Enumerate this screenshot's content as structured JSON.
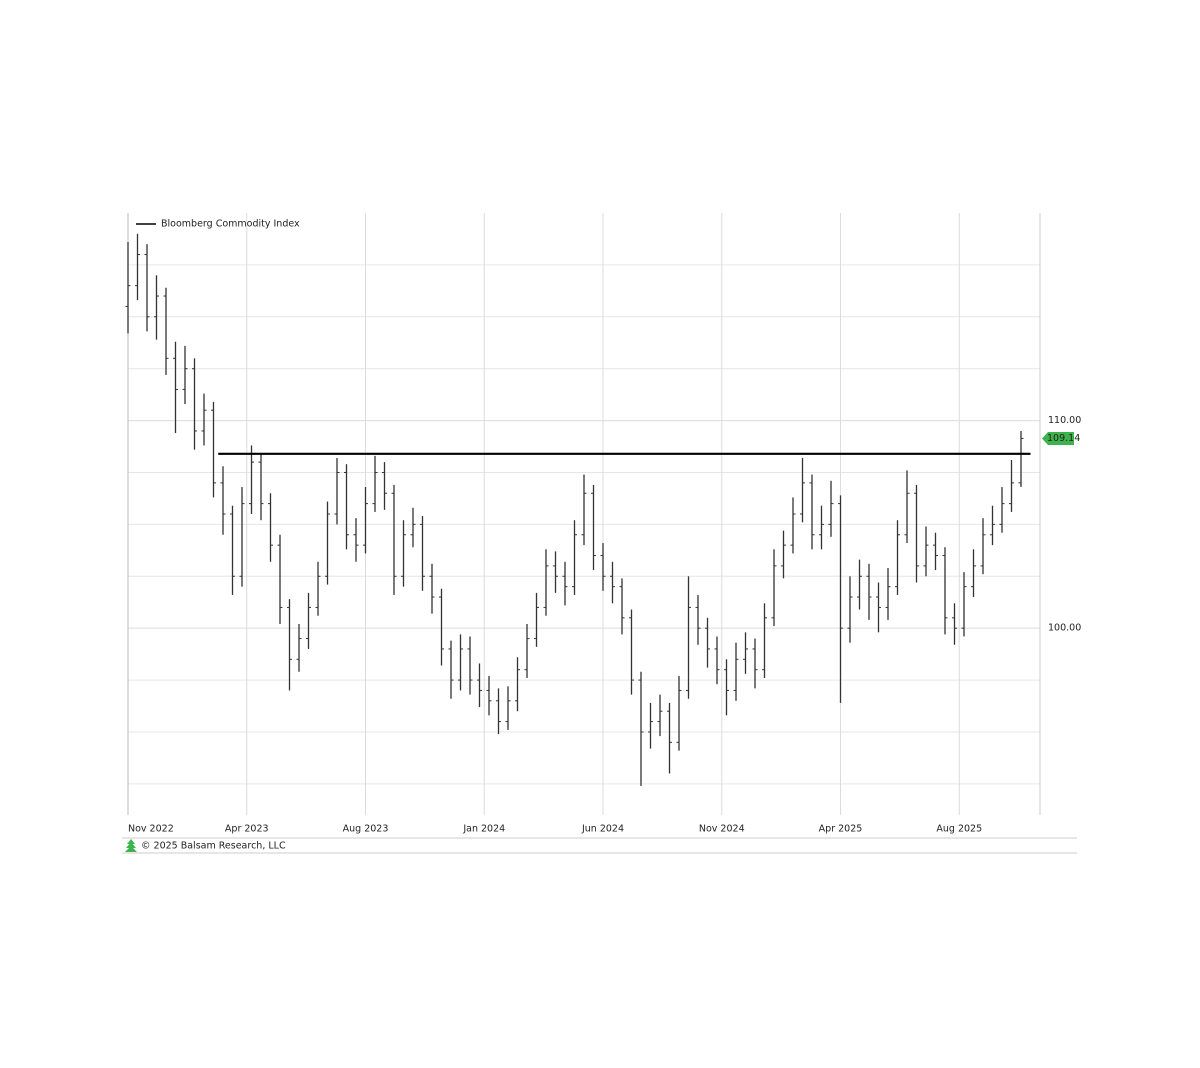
{
  "chart_data": {
    "type": "ohlc",
    "legend": "upper left",
    "footer": "© 2025 Balsam Research, LLC",
    "xlim": [
      0,
      768
    ],
    "xticks": [
      {
        "value": 0,
        "label": "Nov 2022"
      },
      {
        "value": 100,
        "label": "Apr 2023"
      },
      {
        "value": 200,
        "label": "Aug 2023"
      },
      {
        "value": 300,
        "label": "Jan 2024"
      },
      {
        "value": 400,
        "label": "Jun 2024"
      },
      {
        "value": 500,
        "label": "Nov 2024"
      },
      {
        "value": 600,
        "label": "Apr 2025"
      },
      {
        "value": 700,
        "label": "Aug 2025"
      }
    ],
    "ylim": [
      91,
      120
    ],
    "yticks": [
      {
        "value": 110,
        "label": "110.00"
      },
      {
        "value": 100,
        "label": "100.00"
      }
    ],
    "ygrid": [
      92.5,
      95,
      97.5,
      102.5,
      105,
      107.5,
      112.5,
      115,
      117.5
    ],
    "grid": true,
    "level_line": {
      "y": 108.4,
      "x": [
        76,
        760
      ],
      "color": "#000000"
    },
    "x": [
      0,
      8,
      16,
      24,
      32,
      40,
      48,
      56,
      64,
      72,
      80,
      88,
      96,
      104,
      112,
      120,
      128,
      136,
      144,
      152,
      160,
      168,
      176,
      184,
      192,
      200,
      208,
      216,
      224,
      232,
      240,
      248,
      256,
      264,
      272,
      280,
      288,
      296,
      304,
      312,
      320,
      328,
      336,
      344,
      352,
      360,
      368,
      376,
      384,
      392,
      400,
      408,
      416,
      424,
      432,
      440,
      448,
      456,
      464,
      472,
      480,
      488,
      496,
      504,
      512,
      520,
      528,
      536,
      544,
      552,
      560,
      568,
      576,
      584,
      592,
      600,
      608,
      616,
      624,
      632,
      640,
      648,
      656,
      664,
      672,
      680,
      688,
      696,
      704,
      712,
      720,
      728,
      736,
      744,
      752
    ],
    "series": [
      {
        "name": "Bloomberg Commodity Index",
        "color": "#333333",
        "tag_color": "#3cb44b",
        "open": [
          115.5,
          116.5,
          118,
          115,
          116,
          113,
          111.5,
          112.5,
          109.5,
          110.5,
          107,
          105.5,
          102.5,
          106,
          108,
          106,
          104,
          101,
          98.5,
          99.5,
          101,
          102.5,
          105.5,
          107.5,
          104.5,
          104,
          106,
          107.5,
          106.5,
          102.5,
          104.5,
          105,
          102.5,
          101.5,
          99,
          97.5,
          99,
          97.5,
          97,
          96.5,
          95.5,
          96.5,
          98,
          99.5,
          101,
          103,
          102.5,
          102,
          104.5,
          106.5,
          103.5,
          102.5,
          102,
          100.5,
          97.5,
          95,
          95.5,
          96,
          94.5,
          97,
          101,
          100,
          99,
          98,
          97,
          98.5,
          99,
          98,
          100.5,
          103,
          104,
          105.5,
          107,
          104.5,
          105,
          106,
          100,
          101.5,
          102.5,
          101.5,
          101,
          102,
          104.5,
          106.5,
          103,
          104,
          103.5,
          100.5,
          100,
          102,
          103,
          104.5,
          105,
          106,
          107
        ],
        "high": [
          118.6,
          119,
          118.5,
          117,
          116.4,
          113.8,
          113.6,
          113,
          111.3,
          110.9,
          107.8,
          105.9,
          106.8,
          108.8,
          108.4,
          106.5,
          104.5,
          101.4,
          100.2,
          101.7,
          103.2,
          106.1,
          108.2,
          107.9,
          105.3,
          106.8,
          108.3,
          108,
          106.9,
          105.2,
          105.8,
          105.4,
          103.1,
          101.9,
          99.4,
          99.7,
          99.6,
          98.3,
          97.7,
          97.1,
          97.2,
          98.6,
          100.2,
          101.7,
          103.8,
          103.7,
          103.2,
          105.2,
          107.4,
          106.9,
          104.1,
          103.2,
          102.4,
          100.9,
          97.9,
          96.4,
          96.8,
          96.4,
          97.7,
          102.5,
          101.6,
          100.5,
          99.6,
          98.5,
          99.3,
          99.8,
          99.5,
          101.2,
          103.8,
          104.7,
          106.3,
          108.2,
          107.4,
          105.9,
          107.1,
          106.4,
          102.5,
          103.3,
          103.1,
          102.2,
          102.9,
          105.2,
          107.6,
          106.9,
          104.9,
          104.6,
          103.9,
          101.2,
          102.7,
          103.8,
          105.3,
          105.9,
          106.8,
          108.1,
          109.5
        ],
        "low": [
          114.2,
          115.8,
          114.3,
          113.9,
          112.2,
          109.4,
          110.8,
          108.6,
          108.8,
          106.3,
          104.5,
          101.6,
          102,
          105.5,
          105.2,
          103.2,
          100.2,
          97,
          97.9,
          99,
          100.6,
          102.1,
          105,
          103.8,
          103.2,
          103.6,
          105.6,
          105.7,
          101.6,
          102,
          103.9,
          101.8,
          100.7,
          98.2,
          96.6,
          97,
          96.8,
          96.2,
          95.8,
          94.9,
          95.1,
          96,
          97.6,
          99.1,
          100.6,
          101.7,
          101.1,
          101.6,
          104,
          102.8,
          101.8,
          101.2,
          99.7,
          96.8,
          92.4,
          94.2,
          94.8,
          93,
          94.1,
          96.6,
          99.2,
          98.1,
          97.3,
          95.8,
          96.5,
          97.8,
          97.1,
          97.6,
          100.1,
          102.4,
          103.6,
          105.1,
          103.8,
          103.8,
          104.4,
          96.4,
          99.3,
          100.9,
          100.4,
          99.8,
          100.4,
          101.6,
          104.1,
          102.2,
          102.5,
          102.8,
          99.7,
          99.2,
          99.6,
          101.5,
          102.6,
          104,
          104.6,
          105.6,
          106.8
        ],
        "close": [
          116.5,
          118,
          115,
          116,
          113,
          111.5,
          112.5,
          109.5,
          110.5,
          107,
          105.5,
          102.5,
          106,
          108,
          106,
          104,
          101,
          98.5,
          99.5,
          101,
          102.5,
          105.5,
          107.5,
          104.5,
          104,
          106,
          107.5,
          106.5,
          102.5,
          104.5,
          105,
          102.5,
          101.5,
          99,
          97.5,
          99,
          97.5,
          97,
          96.5,
          95.5,
          96.5,
          98,
          99.5,
          101,
          103,
          102.5,
          102,
          104.5,
          106.5,
          103.5,
          102.5,
          102,
          100.5,
          97.5,
          95,
          95.5,
          96,
          94.5,
          97,
          101,
          100,
          99,
          98,
          97,
          98.5,
          99,
          98,
          100.5,
          103,
          104,
          105.5,
          107,
          104.5,
          105,
          106,
          100,
          101.5,
          102.5,
          101.5,
          101,
          102,
          104.5,
          106.5,
          103,
          104,
          103.5,
          100.5,
          100,
          102,
          103,
          104.5,
          105,
          106,
          107,
          109.14
        ]
      }
    ]
  }
}
